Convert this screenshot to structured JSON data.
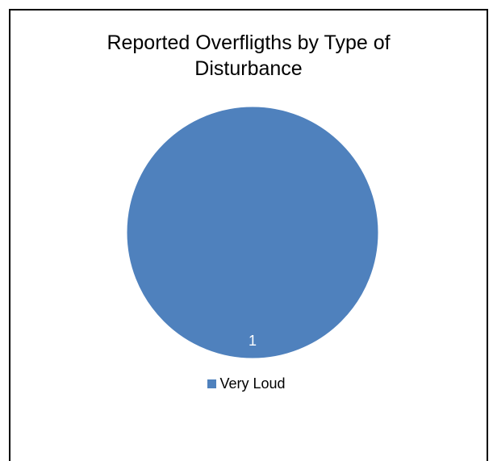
{
  "chart_data": {
    "type": "pie",
    "title_lines": [
      "Reported Overfligths by Type of",
      "Disturbance"
    ],
    "categories": [
      "Very Loud"
    ],
    "values": [
      1
    ],
    "data_labels": [
      "1"
    ],
    "colors": [
      "#4f81bd"
    ],
    "legend_position": "bottom"
  }
}
